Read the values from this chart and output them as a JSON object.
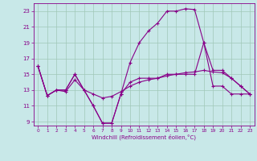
{
  "xlabel": "Windchill (Refroidissement éolien,°C)",
  "background_color": "#c8e8e8",
  "grid_color": "#a0c8b8",
  "line_color": "#880088",
  "xlim": [
    -0.5,
    23.5
  ],
  "ylim": [
    8.5,
    24.0
  ],
  "yticks": [
    9,
    11,
    13,
    15,
    17,
    19,
    21,
    23
  ],
  "xticks": [
    0,
    1,
    2,
    3,
    4,
    5,
    6,
    7,
    8,
    9,
    10,
    11,
    12,
    13,
    14,
    15,
    16,
    17,
    18,
    19,
    20,
    21,
    22,
    23
  ],
  "series": [
    {
      "x": [
        0,
        1,
        2,
        3,
        4,
        5,
        6,
        7,
        8,
        9,
        10,
        11,
        12,
        13,
        14,
        15,
        16,
        17,
        18,
        19,
        20,
        21,
        22,
        23
      ],
      "y": [
        16.0,
        12.3,
        13.0,
        13.0,
        15.0,
        13.0,
        11.0,
        8.8,
        8.8,
        12.5,
        16.5,
        19.0,
        20.5,
        21.5,
        23.0,
        23.0,
        23.3,
        23.2,
        19.0,
        13.5,
        13.5,
        12.5,
        12.5,
        12.5
      ]
    },
    {
      "x": [
        0,
        1,
        2,
        3,
        4,
        5,
        6,
        7,
        8,
        9,
        10,
        11,
        12,
        13,
        14,
        15,
        16,
        17,
        18,
        19,
        20,
        21,
        22,
        23
      ],
      "y": [
        16.0,
        12.3,
        13.0,
        13.0,
        15.0,
        13.0,
        11.0,
        8.8,
        8.8,
        12.5,
        14.0,
        14.5,
        14.5,
        14.5,
        15.0,
        15.0,
        15.0,
        15.0,
        19.0,
        15.5,
        15.5,
        14.5,
        13.5,
        12.5
      ]
    },
    {
      "x": [
        0,
        1,
        2,
        3,
        4,
        5,
        6,
        7,
        8,
        9,
        10,
        11,
        12,
        13,
        14,
        15,
        16,
        17,
        18,
        19,
        20,
        21,
        22,
        23
      ],
      "y": [
        16.0,
        12.3,
        13.0,
        12.8,
        14.3,
        13.0,
        12.5,
        12.0,
        12.2,
        12.8,
        13.5,
        14.0,
        14.3,
        14.5,
        14.8,
        15.0,
        15.2,
        15.3,
        15.5,
        15.3,
        15.2,
        14.5,
        13.5,
        12.5
      ]
    }
  ]
}
